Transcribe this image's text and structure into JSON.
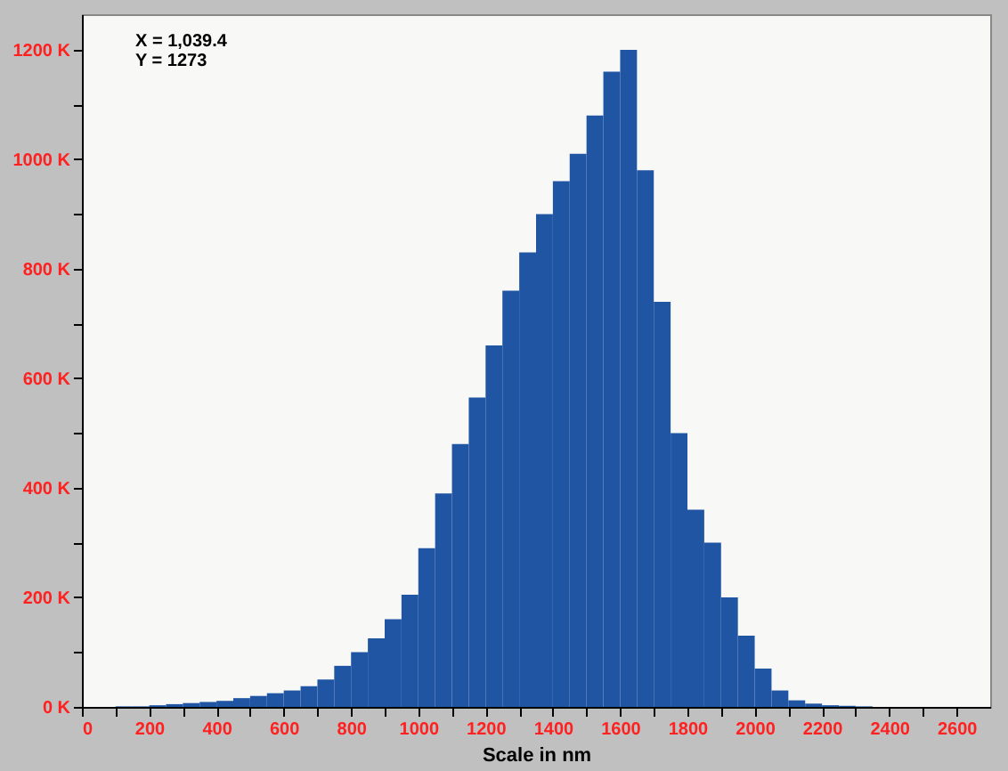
{
  "chart_data": {
    "type": "histogram",
    "xlabel": "Scale in nm",
    "annotations": [
      "X = 1,039.4",
      "Y = 1273"
    ],
    "bins": [
      100,
      150,
      200,
      250,
      300,
      350,
      400,
      450,
      500,
      550,
      600,
      650,
      700,
      750,
      800,
      850,
      900,
      950,
      1000,
      1050,
      1100,
      1150,
      1200,
      1250,
      1300,
      1350,
      1400,
      1450,
      1500,
      1550,
      1600,
      1650,
      1700,
      1750,
      1800,
      1850,
      1900,
      1950,
      2000,
      2050,
      2100,
      2150,
      2200,
      2250,
      2300,
      2350,
      2400
    ],
    "values": [
      1,
      1,
      3,
      5,
      7,
      9,
      11,
      16,
      20,
      25,
      30,
      38,
      50,
      75,
      100,
      125,
      160,
      205,
      290,
      390,
      480,
      565,
      660,
      760,
      830,
      900,
      960,
      1010,
      1080,
      1160,
      1200,
      980,
      740,
      500,
      360,
      300,
      200,
      130,
      70,
      30,
      12,
      6,
      3,
      2,
      1,
      0
    ],
    "color": "#2055a4",
    "xlim": [
      0,
      2700
    ],
    "xticks": [
      0,
      {
        "value": 100,
        "label": null
      },
      200,
      {
        "value": 300,
        "label": null
      },
      400,
      {
        "value": 500,
        "label": null
      },
      600,
      {
        "value": 700,
        "label": null
      },
      800,
      {
        "value": 900,
        "label": null
      },
      1000,
      {
        "value": 1100,
        "label": null
      },
      1200,
      {
        "value": 1300,
        "label": null
      },
      1400,
      {
        "value": 1500,
        "label": null
      },
      1600,
      {
        "value": 1700,
        "label": null
      },
      1800,
      {
        "value": 1900,
        "label": null
      },
      2000,
      {
        "value": 2100,
        "label": null
      },
      2200,
      {
        "value": 2300,
        "label": null
      },
      2400,
      {
        "value": 2500,
        "label": null
      },
      2600
    ],
    "ylim": [
      0,
      1265
    ],
    "yticks": [
      {
        "value": 0,
        "label": "0 K"
      },
      {
        "value": 100,
        "label": null
      },
      {
        "value": 200,
        "label": "200 K"
      },
      {
        "value": 300,
        "label": null
      },
      {
        "value": 400,
        "label": "400 K"
      },
      {
        "value": 500,
        "label": null
      },
      {
        "value": 600,
        "label": "600 K"
      },
      {
        "value": 700,
        "label": null
      },
      {
        "value": 800,
        "label": "800 K"
      },
      {
        "value": 900,
        "label": null
      },
      {
        "value": 1000,
        "label": "1000 K"
      },
      {
        "value": 1100,
        "label": null
      },
      {
        "value": 1200,
        "label": "1200 K"
      }
    ],
    "grid": false
  }
}
